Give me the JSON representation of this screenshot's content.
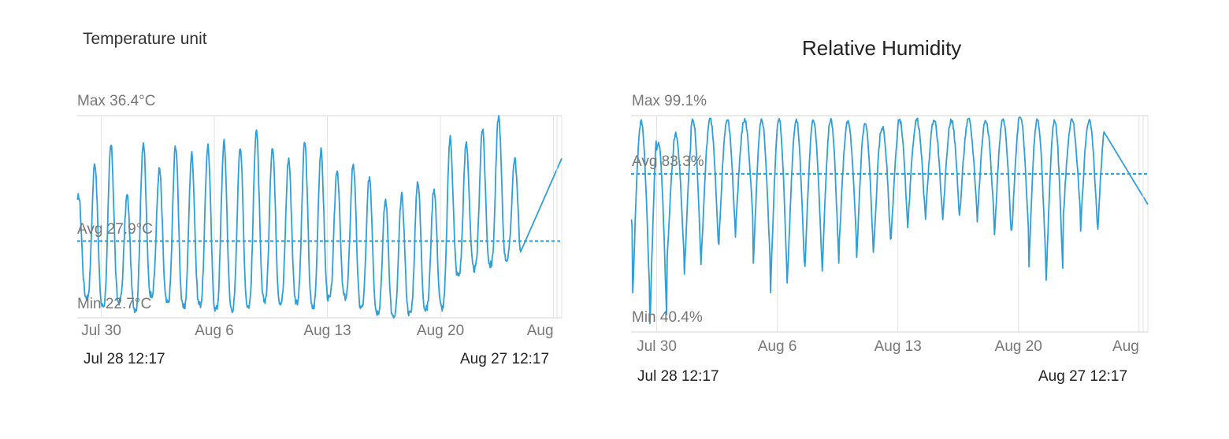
{
  "temperature_panel": {
    "title": "Temperature unit",
    "range_start": "Jul 28  12:17",
    "range_end": "Aug 27  12:17"
  },
  "humidity_panel": {
    "title": "Relative Humidity",
    "range_start": "Jul 28  12:17",
    "range_end": "Aug 27  12:17"
  },
  "colors": {
    "series": "#2f9fd8",
    "grid": "#e3e3e3",
    "axis_text": "#777777"
  },
  "chart_data": [
    {
      "type": "line",
      "title": "Temperature unit",
      "x_start_day": 28.51,
      "x_end_day": 58.51,
      "xlim": [
        28.51,
        58.51
      ],
      "ylim": [
        22.7,
        36.4
      ],
      "x_tick_days": [
        30,
        37,
        44,
        51,
        58
      ],
      "x_tick_labels": [
        "Jul 30",
        "Aug 6",
        "Aug 13",
        "Aug 20",
        "Aug"
      ],
      "max_label": "Max 36.4°C",
      "avg_label": "Avg 27.9°C",
      "min_label": "Min 22.7°C",
      "avg": 27.9,
      "grid": true,
      "daily_peaks": [
        31.0,
        33.2,
        34.4,
        31.0,
        34.6,
        32.8,
        34.4,
        33.8,
        34.4,
        34.6,
        34.4,
        35.5,
        34.4,
        33.5,
        34.6,
        34.0,
        32.8,
        33.2,
        32.3,
        30.7,
        31.0,
        32.0,
        31.5,
        34.9,
        34.6,
        35.5,
        36.4,
        33.5
      ],
      "daily_troughs": [
        23.2,
        24.1,
        23.5,
        23.8,
        23.3,
        24.3,
        23.7,
        23.4,
        23.6,
        23.3,
        23.3,
        23.5,
        23.9,
        23.8,
        23.8,
        23.4,
        24.0,
        24.1,
        23.4,
        23.1,
        22.7,
        23.0,
        23.3,
        23.4,
        25.6,
        26.0,
        26.3,
        26.7
      ]
    },
    {
      "type": "line",
      "title": "Relative Humidity",
      "x_start_day": 28.51,
      "x_end_day": 58.51,
      "xlim": [
        28.51,
        58.51
      ],
      "ylim": [
        40.4,
        99.1
      ],
      "x_tick_days": [
        30,
        37,
        44,
        51,
        58
      ],
      "x_tick_labels": [
        "Jul 30",
        "Aug 6",
        "Aug 13",
        "Aug 20",
        "Aug"
      ],
      "max_label": "Max 99.1%",
      "avg_label": "Avg 83.3%",
      "min_label": "Min 40.4%",
      "avg": 83.3,
      "grid": true,
      "daily_peaks": [
        98.0,
        97.5,
        92.0,
        94.0,
        98.0,
        98.5,
        98.0,
        98.0,
        98.0,
        98.0,
        98.0,
        98.0,
        98.0,
        97.5,
        97.0,
        96.0,
        98.0,
        98.0,
        98.0,
        98.0,
        98.0,
        98.0,
        98.0,
        99.1,
        98.0,
        98.0,
        98.0,
        98.0
      ],
      "daily_troughs": [
        66.0,
        50.0,
        42.0,
        60.0,
        56.0,
        62.0,
        64.0,
        70.0,
        58.0,
        51.0,
        56.0,
        58.0,
        56.0,
        65.0,
        60.0,
        63.0,
        66.0,
        71.0,
        71.0,
        70.0,
        73.0,
        70.0,
        66.0,
        67.0,
        58.0,
        54.0,
        72.0,
        68.0
      ]
    }
  ]
}
